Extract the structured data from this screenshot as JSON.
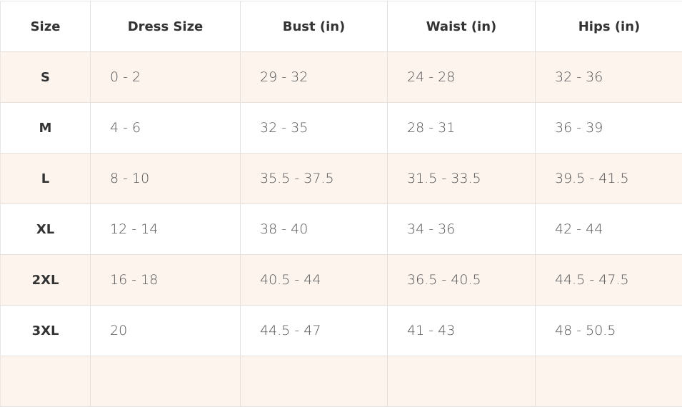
{
  "table": {
    "headers": [
      "Size",
      "Dress Size",
      "Bust (in)",
      "Waist (in)",
      "Hips (in)"
    ],
    "rows": [
      [
        "S",
        "0 - 2",
        "29 - 32",
        "24 - 28",
        "32 - 36"
      ],
      [
        "M",
        "4 - 6",
        "32 - 35",
        "28 - 31",
        "36 - 39"
      ],
      [
        "L",
        "8 - 10",
        "35.5 - 37.5",
        "31.5 - 33.5",
        "39.5 - 41.5"
      ],
      [
        "XL",
        "12 - 14",
        "38 - 40",
        "34 - 36",
        "42 - 44"
      ],
      [
        "2XL",
        "16 - 18",
        "40.5 - 44",
        "36.5 - 40.5",
        "44.5 - 47.5"
      ],
      [
        "3XL",
        "20",
        "44.5 - 47",
        "41 - 43",
        "48 - 50.5"
      ]
    ],
    "colors": {
      "alt_row": "#fdf4ee",
      "border": "#e3e0dd",
      "header_text": "#333333",
      "cell_text": "#555555"
    }
  }
}
